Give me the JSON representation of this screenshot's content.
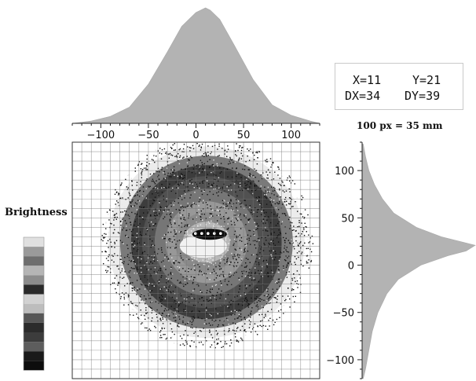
{
  "readout": {
    "x_label": "X=11",
    "y_label": "Y=21",
    "dx_label": "DX=34",
    "dy_label": "DY=39"
  },
  "scale_text": "100 px = 35 mm",
  "legend": {
    "title": "Brightness",
    "swatches": [
      "#e0e0e0",
      "#9a9a9a",
      "#6e6e6e",
      "#b5b5b5",
      "#8c8c8c",
      "#2a2a2a",
      "#d2d2d2",
      "#bdbdbd",
      "#575757",
      "#2b2b2b",
      "#3c3c3c",
      "#5d5d5d",
      "#1a1a1a",
      "#0d0d0d"
    ]
  },
  "chart_data": {
    "type": "heatmap",
    "title": "",
    "xlabel": "",
    "ylabel": "",
    "grid": true,
    "x_axis": {
      "range": [
        -130,
        130
      ],
      "ticks": [
        -100,
        -50,
        0,
        50,
        100
      ],
      "placement": "top"
    },
    "y_axis": {
      "range": [
        -120,
        130
      ],
      "ticks": [
        100,
        50,
        0,
        -50,
        -100
      ],
      "placement": "right"
    },
    "spot": {
      "center_x": 11,
      "center_y": 21,
      "width_dx": 34,
      "height_dy": 39
    },
    "x_profile": {
      "type": "area",
      "x": [
        -130,
        -110,
        -90,
        -70,
        -50,
        -30,
        -15,
        0,
        10,
        15,
        25,
        40,
        60,
        80,
        100,
        120,
        130
      ],
      "values": [
        0,
        2,
        6,
        14,
        34,
        62,
        84,
        96,
        100,
        98,
        90,
        68,
        38,
        16,
        7,
        2,
        0
      ]
    },
    "y_profile": {
      "type": "area",
      "y": [
        128,
        115,
        100,
        85,
        70,
        55,
        40,
        30,
        21,
        15,
        10,
        0,
        -15,
        -30,
        -50,
        -70,
        -90,
        -110,
        -120
      ],
      "values": [
        1,
        3,
        6,
        11,
        18,
        28,
        48,
        70,
        100,
        92,
        76,
        52,
        32,
        22,
        14,
        9,
        6,
        3,
        1
      ]
    }
  }
}
